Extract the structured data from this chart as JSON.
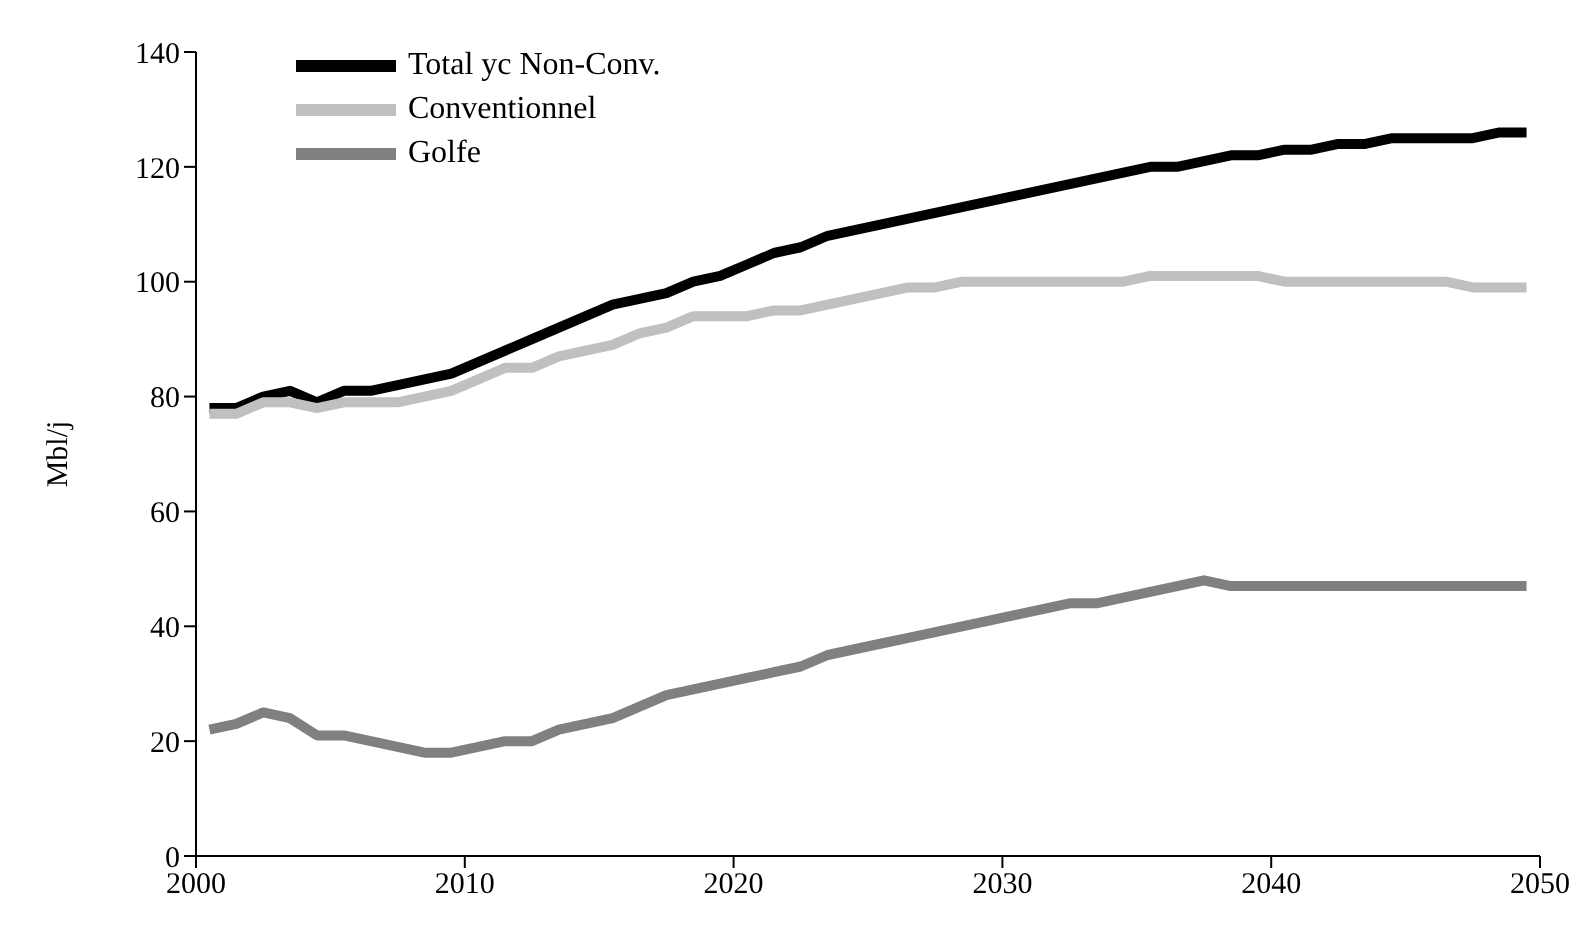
{
  "chart_data": {
    "type": "line",
    "ylabel": "Mbl/j",
    "x": [
      2000.5,
      2001.5,
      2002.5,
      2003.5,
      2004.5,
      2005.5,
      2006.5,
      2007.5,
      2008.5,
      2009.5,
      2010.5,
      2011.5,
      2012.5,
      2013.5,
      2014.5,
      2015.5,
      2016.5,
      2017.5,
      2018.5,
      2019.5,
      2020.5,
      2021.5,
      2022.5,
      2023.5,
      2024.5,
      2025.5,
      2026.5,
      2027.5,
      2028.5,
      2029.5,
      2030.5,
      2031.5,
      2032.5,
      2033.5,
      2034.5,
      2035.5,
      2036.5,
      2037.5,
      2038.5,
      2039.5,
      2040.5,
      2041.5,
      2042.5,
      2043.5,
      2044.5,
      2045.5,
      2046.5,
      2047.5,
      2048.5,
      2049.5
    ],
    "series": [
      {
        "name": "Total yc Non-Conv.",
        "color": "#000000",
        "values": [
          78,
          78,
          80,
          81,
          79,
          81,
          81,
          82,
          83,
          84,
          86,
          88,
          90,
          92,
          94,
          96,
          97,
          98,
          100,
          101,
          103,
          105,
          106,
          108,
          109,
          110,
          111,
          112,
          113,
          114,
          115,
          116,
          117,
          118,
          119,
          120,
          120,
          121,
          122,
          122,
          123,
          123,
          124,
          124,
          125,
          125,
          125,
          125,
          126,
          126
        ]
      },
      {
        "name": "Conventionnel",
        "color": "#c0c0c0",
        "values": [
          77,
          77,
          79,
          79,
          78,
          79,
          79,
          79,
          80,
          81,
          83,
          85,
          85,
          87,
          88,
          89,
          91,
          92,
          94,
          94,
          94,
          95,
          95,
          96,
          97,
          98,
          99,
          99,
          100,
          100,
          100,
          100,
          100,
          100,
          100,
          101,
          101,
          101,
          101,
          101,
          100,
          100,
          100,
          100,
          100,
          100,
          100,
          99,
          99,
          99
        ]
      },
      {
        "name": "Golfe",
        "color": "#808080",
        "values": [
          22,
          23,
          25,
          24,
          21,
          21,
          20,
          19,
          18,
          18,
          19,
          20,
          20,
          22,
          23,
          24,
          26,
          28,
          29,
          30,
          31,
          32,
          33,
          35,
          36,
          37,
          38,
          39,
          40,
          41,
          42,
          43,
          44,
          44,
          45,
          46,
          47,
          48,
          47,
          47,
          47,
          47,
          47,
          47,
          47,
          47,
          47,
          47,
          47,
          47
        ]
      }
    ],
    "xlim": [
      2000,
      2050
    ],
    "xticks": [
      2000,
      2010,
      2020,
      2030,
      2040,
      2050
    ],
    "ylim": [
      0,
      140
    ],
    "yticks": [
      0,
      20,
      40,
      60,
      80,
      100,
      120,
      140
    ],
    "grid": false,
    "legend": "top left",
    "marker": "none",
    "line_style": "solid"
  }
}
